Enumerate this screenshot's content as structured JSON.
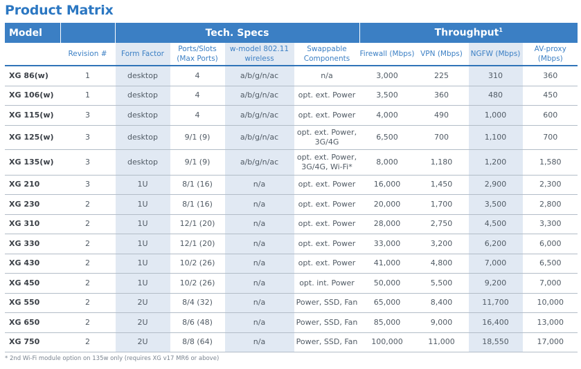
{
  "title": "Product Matrix",
  "group_headers": {
    "model": "Model",
    "tech_specs": "Tech. Specs",
    "throughput": "Throughput",
    "throughput_mark": "1"
  },
  "columns": [
    "Revision #",
    "Form Factor",
    "Ports/Slots (Max Ports)",
    "w-model 802.11 wireless",
    "Swappable Components",
    "Firewall (Mbps)",
    "VPN (Mbps)",
    "NGFW (Mbps)",
    "AV-proxy (Mbps)"
  ],
  "rows": [
    [
      "XG 86(w)",
      "1",
      "desktop",
      "4",
      "a/b/g/n/ac",
      "n/a",
      "3,000",
      "225",
      "310",
      "360"
    ],
    [
      "XG 106(w)",
      "1",
      "desktop",
      "4",
      "a/b/g/n/ac",
      "opt. ext. Power",
      "3,500",
      "360",
      "480",
      "450"
    ],
    [
      "XG 115(w)",
      "3",
      "desktop",
      "4",
      "a/b/g/n/ac",
      "opt. ext. Power",
      "4,000",
      "490",
      "1,000",
      "600"
    ],
    [
      "XG 125(w)",
      "3",
      "desktop",
      "9/1 (9)",
      "a/b/g/n/ac",
      "opt. ext. Power, 3G/4G",
      "6,500",
      "700",
      "1,100",
      "700"
    ],
    [
      "XG 135(w)",
      "3",
      "desktop",
      "9/1 (9)",
      "a/b/g/n/ac",
      "opt. ext. Power, 3G/4G, Wi-Fi*",
      "8,000",
      "1,180",
      "1,200",
      "1,580"
    ],
    [
      "XG 210",
      "3",
      "1U",
      "8/1 (16)",
      "n/a",
      "opt. ext. Power",
      "16,000",
      "1,450",
      "2,900",
      "2,300"
    ],
    [
      "XG 230",
      "2",
      "1U",
      "8/1 (16)",
      "n/a",
      "opt. ext. Power",
      "20,000",
      "1,700",
      "3,500",
      "2,800"
    ],
    [
      "XG 310",
      "2",
      "1U",
      "12/1 (20)",
      "n/a",
      "opt. ext. Power",
      "28,000",
      "2,750",
      "4,500",
      "3,300"
    ],
    [
      "XG 330",
      "2",
      "1U",
      "12/1 (20)",
      "n/a",
      "opt. ext. Power",
      "33,000",
      "3,200",
      "6,200",
      "6,000"
    ],
    [
      "XG 430",
      "2",
      "1U",
      "10/2 (26)",
      "n/a",
      "opt. ext. Power",
      "41,000",
      "4,800",
      "7,000",
      "6,500"
    ],
    [
      "XG 450",
      "2",
      "1U",
      "10/2 (26)",
      "n/a",
      "opt. int. Power",
      "50,000",
      "5,500",
      "9,200",
      "7,000"
    ],
    [
      "XG 550",
      "2",
      "2U",
      "8/4 (32)",
      "n/a",
      "Power, SSD, Fan",
      "65,000",
      "8,400",
      "11,700",
      "10,000"
    ],
    [
      "XG 650",
      "2",
      "2U",
      "8/6 (48)",
      "n/a",
      "Power, SSD, Fan",
      "85,000",
      "9,000",
      "16,400",
      "13,000"
    ],
    [
      "XG 750",
      "2",
      "2U",
      "8/8 (64)",
      "n/a",
      "Power, SSD, Fan",
      "100,000",
      "11,000",
      "18,550",
      "17,000"
    ]
  ],
  "footnote": "* 2nd Wi-Fi module option on 135w only (requires XG v17 MR6 or above)",
  "colors": {
    "header_blue": "#3b7fc4",
    "title_blue": "#2b77c2",
    "shaded_column": "#e1e9f3"
  }
}
